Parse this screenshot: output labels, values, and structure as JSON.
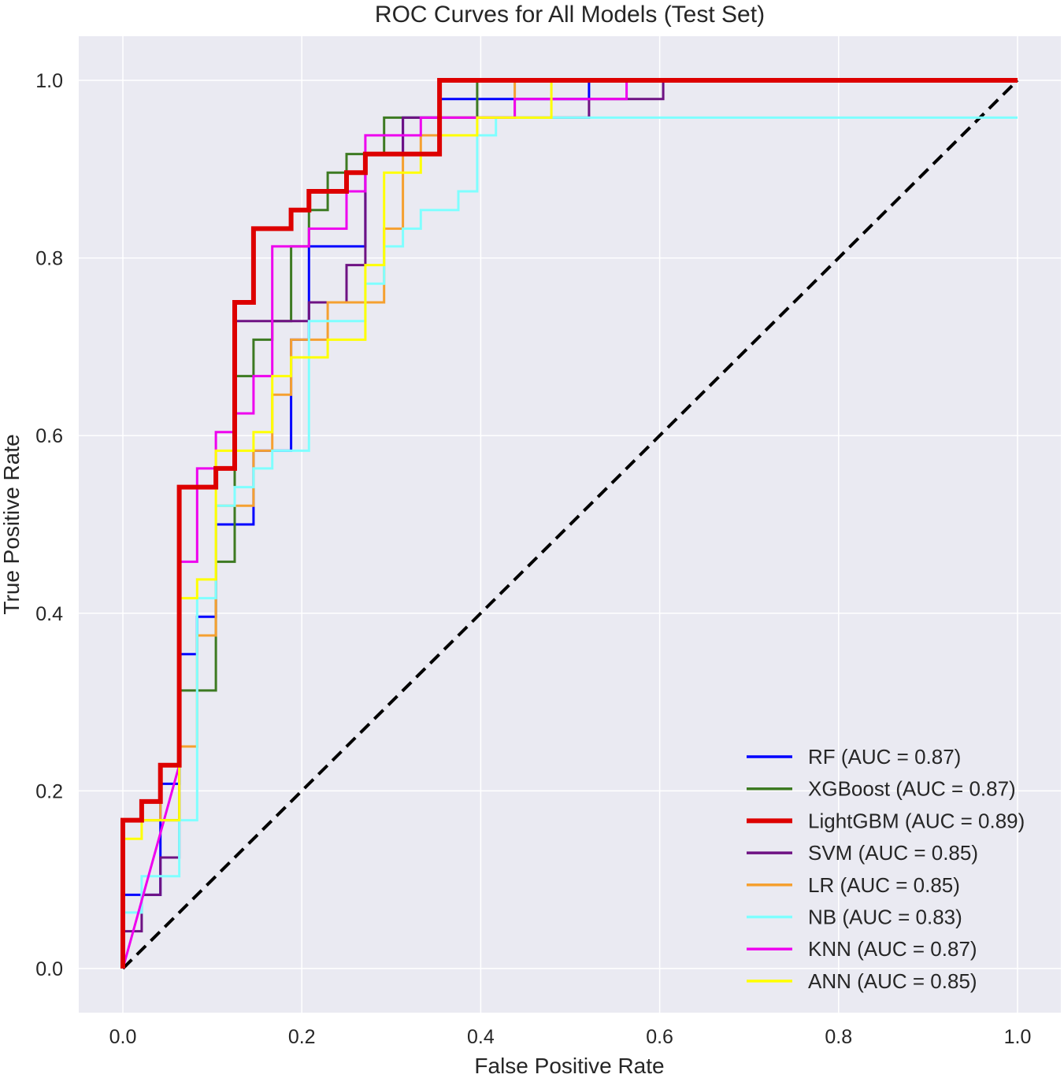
{
  "chart_data": {
    "type": "line",
    "title": "ROC Curves for All Models (Test Set)",
    "xlabel": "False Positive Rate",
    "ylabel": "True Positive Rate",
    "xlim": [
      -0.05,
      1.05
    ],
    "ylim": [
      -0.05,
      1.05
    ],
    "xticks": [
      "0.0",
      "0.2",
      "0.4",
      "0.6",
      "0.8",
      "1.0"
    ],
    "yticks": [
      "0.0",
      "0.2",
      "0.4",
      "0.6",
      "0.8",
      "1.0"
    ],
    "grid": true,
    "legend_position": "lower-right",
    "background": "#EAEAF2",
    "diagonal": {
      "x": [
        0,
        1
      ],
      "y": [
        0,
        1
      ],
      "color": "#000000",
      "style": "dashed"
    },
    "series": [
      {
        "name": "RF (AUC = 0.87)",
        "color": "#0000FF",
        "width": 3,
        "x": [
          0,
          0,
          0.042,
          0.042,
          0.063,
          0.063,
          0.083,
          0.083,
          0.104,
          0.104,
          0.146,
          0.146,
          0.188,
          0.188,
          0.208,
          0.208,
          0.271,
          0.271,
          0.313,
          0.313,
          0.354,
          0.354,
          0.521,
          0.521,
          1.0
        ],
        "y": [
          0,
          0.083,
          0.083,
          0.208,
          0.208,
          0.354,
          0.354,
          0.396,
          0.396,
          0.5,
          0.5,
          0.583,
          0.583,
          0.708,
          0.708,
          0.813,
          0.813,
          0.917,
          0.917,
          0.958,
          0.958,
          0.979,
          0.979,
          1.0,
          1.0
        ]
      },
      {
        "name": "XGBoost (AUC = 0.87)",
        "color": "#3D7A22",
        "width": 3,
        "x": [
          0,
          0,
          0.063,
          0.063,
          0.104,
          0.104,
          0.125,
          0.125,
          0.146,
          0.146,
          0.167,
          0.167,
          0.188,
          0.188,
          0.208,
          0.208,
          0.229,
          0.229,
          0.25,
          0.25,
          0.292,
          0.292,
          0.396,
          0.396,
          1.0
        ],
        "y": [
          0,
          0.167,
          0.167,
          0.313,
          0.313,
          0.458,
          0.458,
          0.667,
          0.667,
          0.708,
          0.708,
          0.729,
          0.729,
          0.813,
          0.813,
          0.854,
          0.854,
          0.896,
          0.896,
          0.917,
          0.917,
          0.958,
          0.958,
          1.0,
          1.0
        ]
      },
      {
        "name": "LightGBM (AUC = 0.89)",
        "color": "#DD0000",
        "width": 6,
        "x": [
          0,
          0,
          0.021,
          0.021,
          0.042,
          0.042,
          0.063,
          0.063,
          0.104,
          0.104,
          0.125,
          0.125,
          0.146,
          0.146,
          0.188,
          0.188,
          0.208,
          0.208,
          0.25,
          0.25,
          0.271,
          0.271,
          0.354,
          0.354,
          1.0
        ],
        "y": [
          0,
          0.167,
          0.167,
          0.188,
          0.188,
          0.229,
          0.229,
          0.542,
          0.542,
          0.563,
          0.563,
          0.75,
          0.75,
          0.833,
          0.833,
          0.854,
          0.854,
          0.875,
          0.875,
          0.896,
          0.896,
          0.917,
          0.917,
          1.0,
          1.0
        ]
      },
      {
        "name": "SVM (AUC = 0.85)",
        "color": "#6E1283",
        "width": 3,
        "x": [
          0,
          0,
          0.021,
          0.021,
          0.042,
          0.042,
          0.063,
          0.063,
          0.104,
          0.104,
          0.125,
          0.125,
          0.188,
          0.188,
          0.208,
          0.208,
          0.25,
          0.25,
          0.271,
          0.271,
          0.292,
          0.292,
          0.313,
          0.313,
          0.333,
          0.333,
          0.479,
          0.479,
          0.521,
          0.521,
          0.563,
          0.563,
          0.604,
          0.604,
          1.0
        ],
        "y": [
          0,
          0.042,
          0.042,
          0.083,
          0.083,
          0.125,
          0.125,
          0.542,
          0.542,
          0.563,
          0.563,
          0.729,
          0.729,
          0.729,
          0.729,
          0.75,
          0.75,
          0.792,
          0.792,
          0.917,
          0.917,
          0.917,
          0.917,
          0.958,
          0.958,
          0.958,
          0.958,
          0.958,
          0.958,
          0.979,
          0.979,
          0.979,
          0.979,
          1.0,
          1.0
        ]
      },
      {
        "name": "LR (AUC = 0.85)",
        "color": "#F5A030",
        "width": 3,
        "x": [
          0,
          0,
          0.042,
          0.042,
          0.063,
          0.063,
          0.083,
          0.083,
          0.104,
          0.104,
          0.125,
          0.125,
          0.146,
          0.146,
          0.167,
          0.167,
          0.188,
          0.188,
          0.229,
          0.229,
          0.25,
          0.25,
          0.292,
          0.292,
          0.313,
          0.313,
          0.333,
          0.333,
          0.354,
          0.354,
          0.438,
          0.438,
          1.0
        ],
        "y": [
          0,
          0.167,
          0.167,
          0.229,
          0.229,
          0.25,
          0.25,
          0.375,
          0.375,
          0.521,
          0.521,
          0.521,
          0.521,
          0.583,
          0.583,
          0.646,
          0.646,
          0.708,
          0.708,
          0.75,
          0.75,
          0.75,
          0.75,
          0.833,
          0.833,
          0.917,
          0.917,
          0.938,
          0.938,
          0.958,
          0.958,
          1.0,
          1.0
        ]
      },
      {
        "name": "NB (AUC = 0.83)",
        "color": "#7FFFFF",
        "width": 3,
        "x": [
          0,
          0,
          0.021,
          0.021,
          0.063,
          0.063,
          0.083,
          0.083,
          0.104,
          0.104,
          0.125,
          0.125,
          0.146,
          0.146,
          0.167,
          0.167,
          0.208,
          0.208,
          0.271,
          0.271,
          0.292,
          0.292,
          0.313,
          0.313,
          0.333,
          0.333,
          0.375,
          0.375,
          0.396,
          0.396,
          0.417,
          0.417,
          1.0
        ],
        "y": [
          0,
          0.063,
          0.063,
          0.104,
          0.104,
          0.167,
          0.167,
          0.417,
          0.417,
          0.521,
          0.521,
          0.542,
          0.542,
          0.563,
          0.563,
          0.583,
          0.583,
          0.729,
          0.729,
          0.771,
          0.771,
          0.813,
          0.813,
          0.833,
          0.833,
          0.854,
          0.854,
          0.875,
          0.875,
          0.938,
          0.938,
          0.958,
          0.958
        ]
      },
      {
        "name": "KNN (AUC = 0.87)",
        "color": "#EE00EE",
        "width": 3,
        "x": [
          0,
          0.063,
          0.063,
          0.083,
          0.083,
          0.104,
          0.104,
          0.125,
          0.125,
          0.146,
          0.146,
          0.167,
          0.167,
          0.208,
          0.208,
          0.25,
          0.25,
          0.271,
          0.271,
          0.313,
          0.313,
          0.333,
          0.333,
          0.438,
          0.438,
          0.563,
          0.563,
          1.0
        ],
        "y": [
          0,
          0.229,
          0.458,
          0.458,
          0.563,
          0.563,
          0.604,
          0.604,
          0.625,
          0.625,
          0.667,
          0.667,
          0.813,
          0.813,
          0.833,
          0.833,
          0.875,
          0.875,
          0.938,
          0.938,
          0.938,
          0.938,
          0.958,
          0.958,
          0.979,
          0.979,
          1.0,
          1.0
        ]
      },
      {
        "name": "ANN (AUC = 0.85)",
        "color": "#FFFF00",
        "width": 3,
        "x": [
          0,
          0,
          0.021,
          0.021,
          0.063,
          0.063,
          0.083,
          0.083,
          0.104,
          0.104,
          0.146,
          0.146,
          0.167,
          0.167,
          0.188,
          0.188,
          0.229,
          0.229,
          0.271,
          0.271,
          0.292,
          0.292,
          0.313,
          0.313,
          0.333,
          0.333,
          0.354,
          0.354,
          0.396,
          0.396,
          0.479,
          0.479,
          1.0
        ],
        "y": [
          0,
          0.146,
          0.146,
          0.167,
          0.167,
          0.417,
          0.417,
          0.438,
          0.438,
          0.583,
          0.583,
          0.604,
          0.604,
          0.667,
          0.667,
          0.688,
          0.688,
          0.708,
          0.708,
          0.792,
          0.792,
          0.896,
          0.896,
          0.896,
          0.896,
          0.917,
          0.917,
          0.938,
          0.938,
          0.958,
          0.958,
          1.0,
          1.0
        ]
      }
    ]
  }
}
